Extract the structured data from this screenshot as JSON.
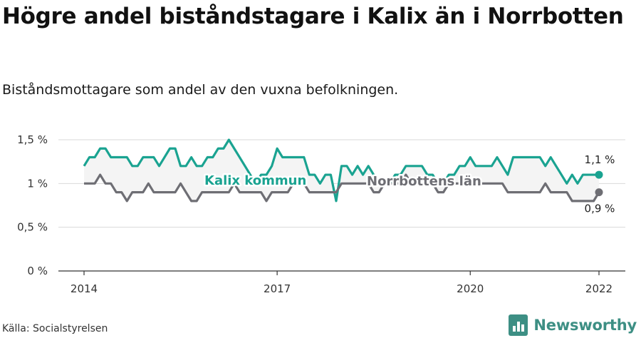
{
  "title": "Högre andel biståndstagare i Kalix än i Norrbotten",
  "subtitle": "Biståndsmottagare som andel av den vuxna befolkningen.",
  "source": "Källa: Socialstyrelsen",
  "brand": "Newsworthy",
  "colors": {
    "kalix": "#1aa391",
    "norrbotten": "#6e6e74",
    "band": "#f4f4f4",
    "grid": "#d9d9d9",
    "brand": "#3d8f84"
  },
  "chart_data": {
    "type": "line",
    "ylim": [
      0,
      1.5
    ],
    "yticks": [
      {
        "value": 0,
        "label": "0 %"
      },
      {
        "value": 0.5,
        "label": "0,5 %"
      },
      {
        "value": 1,
        "label": "1 %"
      },
      {
        "value": 1.5,
        "label": "1,5 %"
      }
    ],
    "xlim": [
      2014,
      2022
    ],
    "xticks": [
      {
        "value": 2014,
        "label": "2014"
      },
      {
        "value": 2017,
        "label": "2017"
      },
      {
        "value": 2020,
        "label": "2020"
      },
      {
        "value": 2022,
        "label": "2022"
      }
    ],
    "series": [
      {
        "name": "Kalix kommun",
        "key": "kalix",
        "end_label": "1,1 %",
        "points": [
          [
            2014.0,
            1.2
          ],
          [
            2014.083,
            1.3
          ],
          [
            2014.167,
            1.3
          ],
          [
            2014.25,
            1.4
          ],
          [
            2014.333,
            1.4
          ],
          [
            2014.417,
            1.3
          ],
          [
            2014.5,
            1.3
          ],
          [
            2014.583,
            1.3
          ],
          [
            2014.667,
            1.3
          ],
          [
            2014.75,
            1.2
          ],
          [
            2014.833,
            1.2
          ],
          [
            2014.917,
            1.3
          ],
          [
            2015.0,
            1.3
          ],
          [
            2015.083,
            1.3
          ],
          [
            2015.167,
            1.2
          ],
          [
            2015.25,
            1.3
          ],
          [
            2015.333,
            1.4
          ],
          [
            2015.417,
            1.4
          ],
          [
            2015.5,
            1.2
          ],
          [
            2015.583,
            1.2
          ],
          [
            2015.667,
            1.3
          ],
          [
            2015.75,
            1.2
          ],
          [
            2015.833,
            1.2
          ],
          [
            2015.917,
            1.3
          ],
          [
            2016.0,
            1.3
          ],
          [
            2016.083,
            1.4
          ],
          [
            2016.167,
            1.4
          ],
          [
            2016.25,
            1.5
          ],
          [
            2016.333,
            1.4
          ],
          [
            2016.417,
            1.3
          ],
          [
            2016.5,
            1.2
          ],
          [
            2016.583,
            1.1
          ],
          [
            2016.667,
            1.0
          ],
          [
            2016.75,
            1.1
          ],
          [
            2016.833,
            1.1
          ],
          [
            2016.917,
            1.2
          ],
          [
            2017.0,
            1.4
          ],
          [
            2017.083,
            1.3
          ],
          [
            2017.167,
            1.3
          ],
          [
            2017.25,
            1.3
          ],
          [
            2017.333,
            1.3
          ],
          [
            2017.417,
            1.3
          ],
          [
            2017.5,
            1.1
          ],
          [
            2017.583,
            1.1
          ],
          [
            2017.667,
            1.0
          ],
          [
            2017.75,
            1.1
          ],
          [
            2017.833,
            1.1
          ],
          [
            2017.917,
            0.8
          ],
          [
            2018.0,
            1.2
          ],
          [
            2018.083,
            1.2
          ],
          [
            2018.167,
            1.1
          ],
          [
            2018.25,
            1.2
          ],
          [
            2018.333,
            1.1
          ],
          [
            2018.417,
            1.2
          ],
          [
            2018.5,
            1.1
          ],
          [
            2018.583,
            1.0
          ],
          [
            2018.667,
            1.0
          ],
          [
            2018.75,
            1.0
          ],
          [
            2018.833,
            1.1
          ],
          [
            2018.917,
            1.1
          ],
          [
            2019.0,
            1.2
          ],
          [
            2019.083,
            1.2
          ],
          [
            2019.167,
            1.2
          ],
          [
            2019.25,
            1.2
          ],
          [
            2019.333,
            1.1
          ],
          [
            2019.417,
            1.1
          ],
          [
            2019.5,
            1.0
          ],
          [
            2019.583,
            1.0
          ],
          [
            2019.667,
            1.1
          ],
          [
            2019.75,
            1.1
          ],
          [
            2019.833,
            1.2
          ],
          [
            2019.917,
            1.2
          ],
          [
            2020.0,
            1.3
          ],
          [
            2020.083,
            1.2
          ],
          [
            2020.167,
            1.2
          ],
          [
            2020.25,
            1.2
          ],
          [
            2020.333,
            1.2
          ],
          [
            2020.417,
            1.3
          ],
          [
            2020.5,
            1.2
          ],
          [
            2020.583,
            1.1
          ],
          [
            2020.667,
            1.3
          ],
          [
            2020.75,
            1.3
          ],
          [
            2020.833,
            1.3
          ],
          [
            2020.917,
            1.3
          ],
          [
            2021.0,
            1.3
          ],
          [
            2021.083,
            1.3
          ],
          [
            2021.167,
            1.2
          ],
          [
            2021.25,
            1.3
          ],
          [
            2021.333,
            1.2
          ],
          [
            2021.417,
            1.1
          ],
          [
            2021.5,
            1.0
          ],
          [
            2021.583,
            1.1
          ],
          [
            2021.667,
            1.0
          ],
          [
            2021.75,
            1.1
          ],
          [
            2021.833,
            1.1
          ],
          [
            2021.917,
            1.1
          ],
          [
            2022.0,
            1.1
          ]
        ]
      },
      {
        "name": "Norrbottens län",
        "key": "norrbotten",
        "end_label": "0,9 %",
        "points": [
          [
            2014.0,
            1.0
          ],
          [
            2014.083,
            1.0
          ],
          [
            2014.167,
            1.0
          ],
          [
            2014.25,
            1.1
          ],
          [
            2014.333,
            1.0
          ],
          [
            2014.417,
            1.0
          ],
          [
            2014.5,
            0.9
          ],
          [
            2014.583,
            0.9
          ],
          [
            2014.667,
            0.8
          ],
          [
            2014.75,
            0.9
          ],
          [
            2014.833,
            0.9
          ],
          [
            2014.917,
            0.9
          ],
          [
            2015.0,
            1.0
          ],
          [
            2015.083,
            0.9
          ],
          [
            2015.167,
            0.9
          ],
          [
            2015.25,
            0.9
          ],
          [
            2015.333,
            0.9
          ],
          [
            2015.417,
            0.9
          ],
          [
            2015.5,
            1.0
          ],
          [
            2015.583,
            0.9
          ],
          [
            2015.667,
            0.8
          ],
          [
            2015.75,
            0.8
          ],
          [
            2015.833,
            0.9
          ],
          [
            2015.917,
            0.9
          ],
          [
            2016.0,
            0.9
          ],
          [
            2016.083,
            0.9
          ],
          [
            2016.167,
            0.9
          ],
          [
            2016.25,
            0.9
          ],
          [
            2016.333,
            1.0
          ],
          [
            2016.417,
            0.9
          ],
          [
            2016.5,
            0.9
          ],
          [
            2016.583,
            0.9
          ],
          [
            2016.667,
            0.9
          ],
          [
            2016.75,
            0.9
          ],
          [
            2016.833,
            0.8
          ],
          [
            2016.917,
            0.9
          ],
          [
            2017.0,
            0.9
          ],
          [
            2017.083,
            0.9
          ],
          [
            2017.167,
            0.9
          ],
          [
            2017.25,
            1.0
          ],
          [
            2017.333,
            1.0
          ],
          [
            2017.417,
            1.0
          ],
          [
            2017.5,
            0.9
          ],
          [
            2017.583,
            0.9
          ],
          [
            2017.667,
            0.9
          ],
          [
            2017.75,
            0.9
          ],
          [
            2017.833,
            0.9
          ],
          [
            2017.917,
            0.9
          ],
          [
            2018.0,
            1.0
          ],
          [
            2018.083,
            1.0
          ],
          [
            2018.167,
            1.0
          ],
          [
            2018.25,
            1.0
          ],
          [
            2018.333,
            1.0
          ],
          [
            2018.417,
            1.0
          ],
          [
            2018.5,
            0.9
          ],
          [
            2018.583,
            0.9
          ],
          [
            2018.667,
            1.0
          ],
          [
            2018.75,
            1.0
          ],
          [
            2018.833,
            1.0
          ],
          [
            2018.917,
            1.0
          ],
          [
            2019.0,
            1.1
          ],
          [
            2019.083,
            1.0
          ],
          [
            2019.167,
            1.0
          ],
          [
            2019.25,
            1.0
          ],
          [
            2019.333,
            1.0
          ],
          [
            2019.417,
            1.0
          ],
          [
            2019.5,
            0.9
          ],
          [
            2019.583,
            0.9
          ],
          [
            2019.667,
            1.0
          ],
          [
            2019.75,
            1.0
          ],
          [
            2019.833,
            1.0
          ],
          [
            2019.917,
            1.0
          ],
          [
            2020.0,
            1.0
          ],
          [
            2020.083,
            1.0
          ],
          [
            2020.167,
            1.0
          ],
          [
            2020.25,
            1.0
          ],
          [
            2020.333,
            1.0
          ],
          [
            2020.417,
            1.0
          ],
          [
            2020.5,
            1.0
          ],
          [
            2020.583,
            0.9
          ],
          [
            2020.667,
            0.9
          ],
          [
            2020.75,
            0.9
          ],
          [
            2020.833,
            0.9
          ],
          [
            2020.917,
            0.9
          ],
          [
            2021.0,
            0.9
          ],
          [
            2021.083,
            0.9
          ],
          [
            2021.167,
            1.0
          ],
          [
            2021.25,
            0.9
          ],
          [
            2021.333,
            0.9
          ],
          [
            2021.417,
            0.9
          ],
          [
            2021.5,
            0.9
          ],
          [
            2021.583,
            0.8
          ],
          [
            2021.667,
            0.8
          ],
          [
            2021.75,
            0.8
          ],
          [
            2021.833,
            0.8
          ],
          [
            2021.917,
            0.8
          ],
          [
            2022.0,
            0.9
          ]
        ]
      }
    ]
  }
}
